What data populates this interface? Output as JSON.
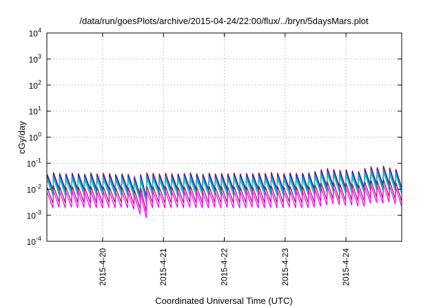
{
  "chart_data": {
    "type": "line",
    "title": "/data/run/goesPlots/archive/2015-04-24/22:00/flux/../bryn/5daysMars.plot",
    "xlabel": "Coordinated Universal Time (UTC)",
    "ylabel": "cGy/day",
    "yscale": "log",
    "ylim": [
      0.0001,
      10000
    ],
    "xlim": [
      "2015-04-19T02:00",
      "2015-04-24T22:00"
    ],
    "grid": true,
    "legend": "none",
    "y_ticks": [
      {
        "value": 0.0001,
        "base": "10",
        "exp": "-4"
      },
      {
        "value": 0.001,
        "base": "10",
        "exp": "-3"
      },
      {
        "value": 0.01,
        "base": "10",
        "exp": "-2"
      },
      {
        "value": 0.1,
        "base": "10",
        "exp": "-1"
      },
      {
        "value": 1,
        "base": "10",
        "exp": "0"
      },
      {
        "value": 10,
        "base": "10",
        "exp": "1"
      },
      {
        "value": 100,
        "base": "10",
        "exp": "2"
      },
      {
        "value": 1000,
        "base": "10",
        "exp": "3"
      },
      {
        "value": 10000,
        "base": "10",
        "exp": "4"
      }
    ],
    "x_ticks": [
      {
        "value": "2015-04-20T00:00",
        "label": "2015-4-20"
      },
      {
        "value": "2015-04-21T00:00",
        "label": "2015-4-21"
      },
      {
        "value": "2015-04-22T00:00",
        "label": "2015-4-22"
      },
      {
        "value": "2015-04-23T00:00",
        "label": "2015-4-23"
      },
      {
        "value": "2015-04-24T00:00",
        "label": "2015-4-24"
      }
    ],
    "series": [
      {
        "color": "#e0001a",
        "peaks": [
          0.038,
          0.045,
          0.042,
          0.04,
          0.043,
          0.041,
          0.039,
          0.044,
          0.04,
          0.042,
          0.041,
          0.038,
          0.04,
          0.039,
          0.031,
          0.038,
          0.044,
          0.042,
          0.04,
          0.043,
          0.041,
          0.04,
          0.042,
          0.044,
          0.041,
          0.039,
          0.043,
          0.04,
          0.042,
          0.041,
          0.043,
          0.04,
          0.042,
          0.041,
          0.044,
          0.042,
          0.045,
          0.043,
          0.041,
          0.044,
          0.042,
          0.043,
          0.044,
          0.05,
          0.058,
          0.065,
          0.06,
          0.055,
          0.058,
          0.052,
          0.05,
          0.065,
          0.075,
          0.07,
          0.08,
          0.068,
          0.06
        ],
        "troughs": [
          0.0098,
          0.0105,
          0.01,
          0.0102,
          0.0099,
          0.0103,
          0.01,
          0.0101,
          0.0098,
          0.0104,
          0.01,
          0.0102,
          0.0099,
          0.009,
          0.006,
          0.005,
          0.01,
          0.0102,
          0.0101,
          0.0099,
          0.0103,
          0.01,
          0.0102,
          0.0099,
          0.0101,
          0.01,
          0.0103,
          0.01,
          0.0102,
          0.0099,
          0.0101,
          0.01,
          0.0102,
          0.0101,
          0.0099,
          0.0103,
          0.0101,
          0.01,
          0.0102,
          0.01,
          0.0101,
          0.01,
          0.0102,
          0.0115,
          0.013,
          0.014,
          0.013,
          0.012,
          0.0125,
          0.0118,
          0.0115,
          0.015,
          0.016,
          0.015,
          0.0165,
          0.014,
          0.012
        ]
      },
      {
        "color": "#0030c0",
        "peaks": [
          0.034,
          0.04,
          0.037,
          0.036,
          0.038,
          0.036,
          0.035,
          0.039,
          0.036,
          0.037,
          0.036,
          0.034,
          0.036,
          0.035,
          0.027,
          0.034,
          0.039,
          0.037,
          0.036,
          0.038,
          0.036,
          0.036,
          0.037,
          0.039,
          0.036,
          0.035,
          0.038,
          0.036,
          0.037,
          0.036,
          0.038,
          0.036,
          0.037,
          0.036,
          0.039,
          0.037,
          0.04,
          0.038,
          0.036,
          0.039,
          0.037,
          0.038,
          0.039,
          0.044,
          0.051,
          0.057,
          0.053,
          0.048,
          0.051,
          0.046,
          0.044,
          0.057,
          0.066,
          0.062,
          0.07,
          0.06,
          0.053
        ],
        "troughs": [
          0.009,
          0.0096,
          0.0092,
          0.0094,
          0.0091,
          0.0095,
          0.0092,
          0.0093,
          0.009,
          0.0095,
          0.0092,
          0.0094,
          0.0091,
          0.0083,
          0.0055,
          0.0046,
          0.0092,
          0.0094,
          0.0093,
          0.0091,
          0.0095,
          0.0092,
          0.0094,
          0.0091,
          0.0093,
          0.0092,
          0.0095,
          0.0092,
          0.0094,
          0.0091,
          0.0093,
          0.0092,
          0.0094,
          0.0093,
          0.0091,
          0.0095,
          0.0093,
          0.0092,
          0.0094,
          0.0092,
          0.0093,
          0.0092,
          0.0094,
          0.0106,
          0.012,
          0.0129,
          0.012,
          0.011,
          0.0115,
          0.0109,
          0.0106,
          0.0138,
          0.0147,
          0.0138,
          0.0152,
          0.0129,
          0.011
        ]
      },
      {
        "color": "#1e8fe0",
        "peaks": [
          0.028,
          0.033,
          0.031,
          0.03,
          0.032,
          0.03,
          0.029,
          0.032,
          0.03,
          0.031,
          0.03,
          0.028,
          0.03,
          0.029,
          0.023,
          0.028,
          0.032,
          0.031,
          0.03,
          0.032,
          0.03,
          0.03,
          0.031,
          0.032,
          0.03,
          0.029,
          0.032,
          0.03,
          0.031,
          0.03,
          0.032,
          0.03,
          0.031,
          0.03,
          0.032,
          0.031,
          0.033,
          0.032,
          0.03,
          0.032,
          0.031,
          0.032,
          0.032,
          0.037,
          0.043,
          0.048,
          0.044,
          0.04,
          0.043,
          0.038,
          0.037,
          0.048,
          0.055,
          0.052,
          0.059,
          0.05,
          0.044
        ],
        "troughs": [
          0.0075,
          0.008,
          0.0077,
          0.0078,
          0.0076,
          0.0079,
          0.0077,
          0.0077,
          0.0075,
          0.008,
          0.0077,
          0.0078,
          0.0076,
          0.0069,
          0.0046,
          0.0038,
          0.0077,
          0.0078,
          0.0077,
          0.0076,
          0.0079,
          0.0077,
          0.0078,
          0.0076,
          0.0077,
          0.0077,
          0.0079,
          0.0077,
          0.0078,
          0.0076,
          0.0077,
          0.0077,
          0.0078,
          0.0077,
          0.0076,
          0.0079,
          0.0077,
          0.0077,
          0.0078,
          0.0077,
          0.0077,
          0.0077,
          0.0078,
          0.0088,
          0.01,
          0.0107,
          0.01,
          0.0092,
          0.0096,
          0.009,
          0.0088,
          0.0115,
          0.0122,
          0.0115,
          0.0126,
          0.0107,
          0.0092
        ]
      },
      {
        "color": "#10c8b0",
        "peaks": [
          0.022,
          0.026,
          0.024,
          0.023,
          0.025,
          0.024,
          0.023,
          0.025,
          0.023,
          0.024,
          0.024,
          0.022,
          0.023,
          0.023,
          0.018,
          0.022,
          0.025,
          0.024,
          0.023,
          0.025,
          0.024,
          0.023,
          0.024,
          0.025,
          0.024,
          0.023,
          0.025,
          0.023,
          0.024,
          0.024,
          0.025,
          0.023,
          0.024,
          0.024,
          0.025,
          0.024,
          0.026,
          0.025,
          0.024,
          0.025,
          0.024,
          0.025,
          0.025,
          0.029,
          0.034,
          0.038,
          0.035,
          0.032,
          0.034,
          0.03,
          0.029,
          0.038,
          0.044,
          0.041,
          0.046,
          0.039,
          0.035
        ],
        "troughs": [
          0.0058,
          0.0062,
          0.0059,
          0.006,
          0.0058,
          0.0061,
          0.0059,
          0.006,
          0.0058,
          0.0061,
          0.0059,
          0.006,
          0.0058,
          0.0053,
          0.0035,
          0.0029,
          0.0059,
          0.006,
          0.006,
          0.0058,
          0.0061,
          0.0059,
          0.006,
          0.0058,
          0.006,
          0.0059,
          0.0061,
          0.0059,
          0.006,
          0.0058,
          0.006,
          0.0059,
          0.006,
          0.006,
          0.0058,
          0.0061,
          0.006,
          0.0059,
          0.006,
          0.0059,
          0.006,
          0.0059,
          0.006,
          0.0068,
          0.0077,
          0.0083,
          0.0077,
          0.0071,
          0.0074,
          0.007,
          0.0068,
          0.0089,
          0.0094,
          0.0089,
          0.0097,
          0.0083,
          0.0071
        ]
      },
      {
        "color": "#a01050",
        "peaks": [
          0.0115,
          0.0135,
          0.0126,
          0.012,
          0.0129,
          0.0123,
          0.0117,
          0.0132,
          0.012,
          0.0126,
          0.0123,
          0.0114,
          0.012,
          0.0117,
          0.0093,
          0.0114,
          0.0132,
          0.0126,
          0.012,
          0.0129,
          0.0123,
          0.012,
          0.0126,
          0.0132,
          0.0123,
          0.0117,
          0.0129,
          0.012,
          0.0126,
          0.0123,
          0.0129,
          0.012,
          0.0126,
          0.0123,
          0.0132,
          0.0126,
          0.0135,
          0.0129,
          0.0123,
          0.0132,
          0.0126,
          0.0129,
          0.0132,
          0.015,
          0.0174,
          0.0195,
          0.018,
          0.0165,
          0.0174,
          0.0156,
          0.015,
          0.0195,
          0.0225,
          0.021,
          0.024,
          0.0204,
          0.018
        ],
        "troughs": [
          0.0029,
          0.0031,
          0.003,
          0.0031,
          0.003,
          0.0031,
          0.003,
          0.003,
          0.0029,
          0.0031,
          0.003,
          0.0031,
          0.003,
          0.0027,
          0.0018,
          0.0014,
          0.003,
          0.0031,
          0.003,
          0.003,
          0.0031,
          0.003,
          0.0031,
          0.003,
          0.003,
          0.003,
          0.0031,
          0.003,
          0.0031,
          0.003,
          0.003,
          0.003,
          0.0031,
          0.003,
          0.003,
          0.0031,
          0.003,
          0.003,
          0.0031,
          0.003,
          0.003,
          0.003,
          0.0031,
          0.0035,
          0.0039,
          0.0042,
          0.0039,
          0.0036,
          0.0038,
          0.0035,
          0.0035,
          0.0045,
          0.0048,
          0.0045,
          0.005,
          0.0042,
          0.0036
        ]
      },
      {
        "color": "#ff00ff",
        "peaks": [
          0.0075,
          0.0088,
          0.0082,
          0.0078,
          0.0084,
          0.008,
          0.0076,
          0.0086,
          0.0078,
          0.0082,
          0.008,
          0.0074,
          0.0078,
          0.0076,
          0.006,
          0.0074,
          0.0086,
          0.0082,
          0.0078,
          0.0084,
          0.008,
          0.0078,
          0.0082,
          0.0086,
          0.008,
          0.0076,
          0.0084,
          0.0078,
          0.0082,
          0.008,
          0.0084,
          0.0078,
          0.0082,
          0.008,
          0.0086,
          0.0082,
          0.0088,
          0.0084,
          0.008,
          0.0086,
          0.0082,
          0.0084,
          0.0086,
          0.0098,
          0.0113,
          0.0127,
          0.0117,
          0.0107,
          0.0113,
          0.0101,
          0.0098,
          0.0127,
          0.0146,
          0.0137,
          0.0156,
          0.0133,
          0.0117
        ],
        "troughs": [
          0.0019,
          0.002,
          0.0019,
          0.002,
          0.0019,
          0.002,
          0.0019,
          0.0019,
          0.0019,
          0.002,
          0.0019,
          0.002,
          0.0019,
          0.0017,
          0.0011,
          0.0008,
          0.0019,
          0.002,
          0.0019,
          0.0019,
          0.002,
          0.0019,
          0.002,
          0.0019,
          0.0019,
          0.0019,
          0.002,
          0.0019,
          0.002,
          0.0019,
          0.0019,
          0.0019,
          0.002,
          0.0019,
          0.0019,
          0.002,
          0.0019,
          0.0019,
          0.002,
          0.0019,
          0.0019,
          0.0019,
          0.002,
          0.0022,
          0.0025,
          0.0027,
          0.0025,
          0.0023,
          0.0024,
          0.0022,
          0.0022,
          0.0029,
          0.0031,
          0.0029,
          0.0032,
          0.0027,
          0.0023
        ]
      }
    ]
  }
}
